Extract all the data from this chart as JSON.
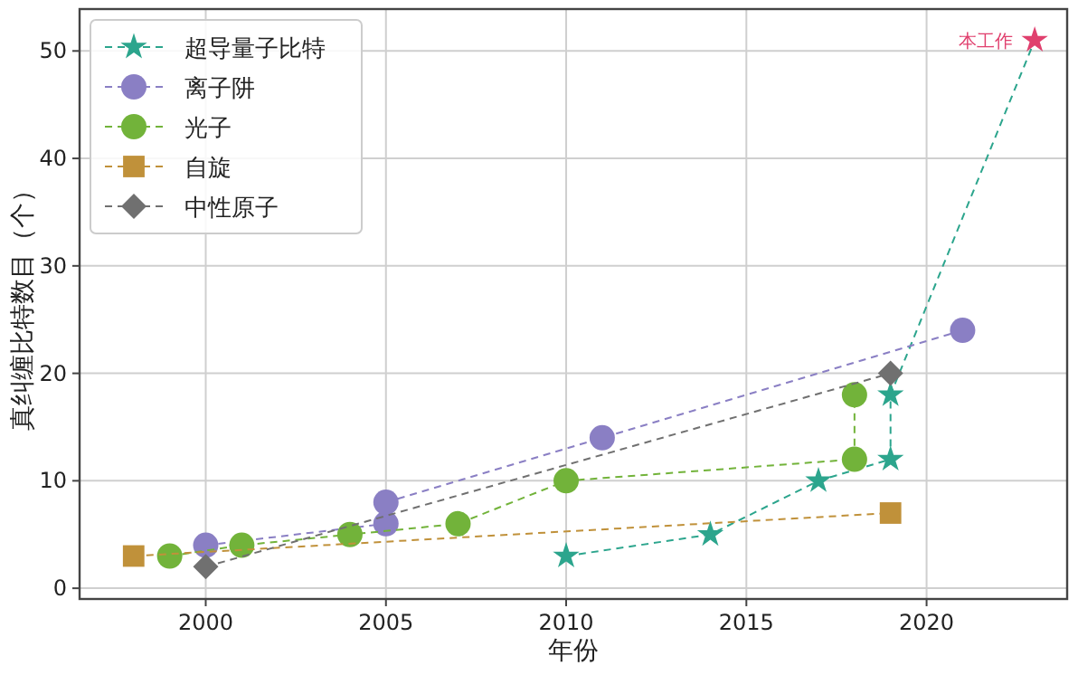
{
  "chart_data": {
    "type": "line",
    "xlabel": "年份",
    "ylabel": "真纠缠比特数目（个）",
    "xlim": [
      1996.5,
      2023.9
    ],
    "ylim": [
      -1,
      53.9
    ],
    "xticks": [
      2000,
      2005,
      2010,
      2015,
      2020
    ],
    "yticks": [
      0,
      10,
      20,
      30,
      40,
      50
    ],
    "grid": true,
    "legend": "top left",
    "line_style": "dashed",
    "series": [
      {
        "name": "超导量子比特",
        "color": "#2ca58d",
        "marker": "star",
        "x": [
          2010,
          2014,
          2017,
          2019,
          2019,
          2023
        ],
        "values": [
          3,
          5,
          10,
          12,
          18,
          51
        ],
        "colors": [
          "#2ca58d",
          "#2ca58d",
          "#2ca58d",
          "#2ca58d",
          "#2ca58d",
          "#e0406e"
        ]
      },
      {
        "name": "离子阱",
        "color": "#8a7fc4",
        "marker": "circle",
        "x": [
          2000,
          2005,
          2005,
          2011,
          2021
        ],
        "values": [
          4,
          6,
          8,
          14,
          24
        ]
      },
      {
        "name": "光子",
        "color": "#72b33a",
        "marker": "circle",
        "x": [
          1999,
          2001,
          2004,
          2007,
          2010,
          2018,
          2018
        ],
        "values": [
          3,
          4,
          5,
          6,
          10,
          12,
          18
        ]
      },
      {
        "name": "自旋",
        "color": "#c0913a",
        "marker": "square",
        "x": [
          1998,
          2019
        ],
        "values": [
          3,
          7
        ]
      },
      {
        "name": "中性原子",
        "color": "#707070",
        "marker": "diamond",
        "x": [
          2000,
          2019
        ],
        "values": [
          2,
          20
        ]
      }
    ],
    "annotations": [
      {
        "text": "本工作",
        "x": 2023,
        "y": 51
      }
    ]
  }
}
